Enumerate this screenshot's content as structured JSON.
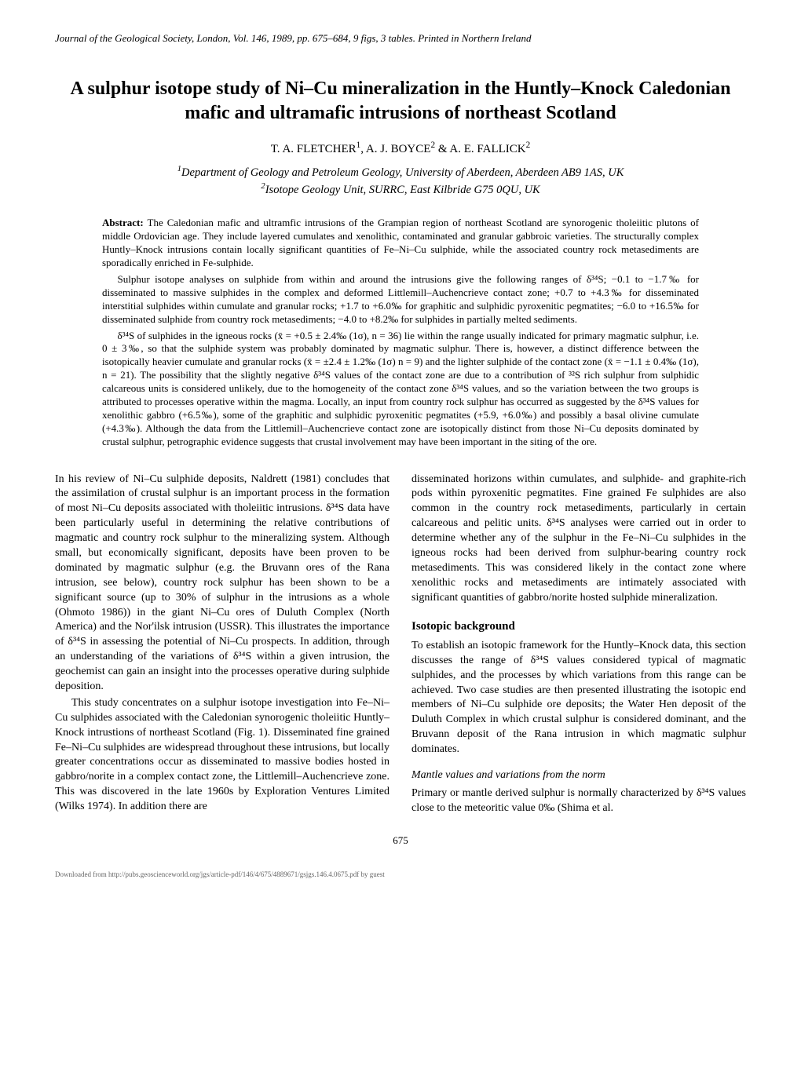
{
  "journal_header": "Journal of the Geological Society, London, Vol. 146, 1989, pp. 675–684, 9 figs, 3 tables. Printed in Northern Ireland",
  "title": "A sulphur isotope study of Ni–Cu mineralization in the Huntly–Knock Caledonian mafic and ultramafic intrusions of northeast Scotland",
  "authors_html": "T. A. FLETCHER<sup>1</sup>, A. J. BOYCE<sup>2</sup> & A. E. FALLICK<sup>2</sup>",
  "affiliations_html": "<sup>1</sup>Department of Geology and Petroleum Geology, University of Aberdeen, Aberdeen AB9 1AS, UK<br><sup>2</sup>Isotope Geology Unit, SURRC, East Kilbride G75 0QU, UK",
  "abstract": {
    "label": "Abstract:",
    "paragraphs": [
      "The Caledonian mafic and ultramfic intrusions of the Grampian region of northeast Scotland are synorogenic tholeiitic plutons of middle Ordovician age. They include layered cumulates and xenolithic, contaminated and granular gabbroic varieties. The structurally complex Huntly–Knock intrusions contain locally significant quantities of Fe–Ni–Cu sulphide, while the associated country rock metasediments are sporadically enriched in Fe-sulphide.",
      "Sulphur isotope analyses on sulphide from within and around the intrusions give the following ranges of δ³⁴S; −0.1 to −1.7‰ for disseminated to massive sulphides in the complex and deformed Littlemill–Auchencrieve contact zone; +0.7 to +4.3‰ for disseminated interstitial sulphides within cumulate and granular rocks; +1.7 to +6.0‰ for graphitic and sulphidic pyroxenitic pegmatites; −6.0 to +16.5‰ for disseminated sulphide from country rock metasediments; −4.0 to +8.2‰ for sulphides in partially melted sediments.",
      "δ³⁴S of sulphides in the igneous rocks (x̄ = +0.5 ± 2.4‰ (1σ), n = 36) lie within the range usually indicated for primary magmatic sulphur, i.e. 0 ± 3‰, so that the sulphide system was probably dominated by magmatic sulphur. There is, however, a distinct difference between the isotopically heavier cumulate and granular rocks (x̄ = ±2.4 ± 1.2‰ (1σ) n = 9) and the lighter sulphide of the contact zone (x̄ = −1.1 ± 0.4‰ (1σ), n = 21). The possibility that the slightly negative δ³⁴S values of the contact zone are due to a contribution of ³²S rich sulphur from sulphidic calcareous units is considered unlikely, due to the homogeneity of the contact zone δ³⁴S values, and so the variation between the two groups is attributed to processes operative within the magma. Locally, an input from country rock sulphur has occurred as suggested by the δ³⁴S values for xenolithic gabbro (+6.5‰), some of the graphitic and sulphidic pyroxenitic pegmatites (+5.9, +6.0‰) and possibly a basal olivine cumulate (+4.3‰). Although the data from the Littlemill–Auchencrieve contact zone are isotopically distinct from those Ni–Cu deposits dominated by crustal sulphur, petrographic evidence suggests that crustal involvement may have been important in the siting of the ore."
    ]
  },
  "body": {
    "left": [
      {
        "type": "p",
        "class": "no-indent",
        "text": "In his review of Ni–Cu sulphide deposits, Naldrett (1981) concludes that the assimilation of crustal sulphur is an important process in the formation of most Ni–Cu deposits associated with tholeiitic intrusions. δ³⁴S data have been particularly useful in determining the relative contributions of magmatic and country rock sulphur to the mineralizing system. Although small, but economically significant, deposits have been proven to be dominated by magmatic sulphur (e.g. the Bruvann ores of the Rana intrusion, see below), country rock sulphur has been shown to be a significant source (up to 30% of sulphur in the intrusions as a whole (Ohmoto 1986)) in the giant Ni–Cu ores of Duluth Complex (North America) and the Nor'ilsk intrusion (USSR). This illustrates the importance of δ³⁴S in assessing the potential of Ni–Cu prospects. In addition, through an understanding of the variations of δ³⁴S within a given intrusion, the geochemist can gain an insight into the processes operative during sulphide deposition."
      },
      {
        "type": "p",
        "text": "This study concentrates on a sulphur isotope investigation into Fe–Ni–Cu sulphides associated with the Caledonian synorogenic tholeiitic Huntly–Knock intrustions of northeast Scotland (Fig. 1). Disseminated fine grained Fe–Ni–Cu sulphides are widespread throughout these intrusions, but locally greater concentrations occur as disseminated to massive bodies hosted in gabbro/norite in a complex contact zone, the Littlemill–Auchencrieve zone. This was discovered in the late 1960s by Exploration Ventures Limited (Wilks 1974). In addition there are"
      }
    ],
    "right": [
      {
        "type": "p",
        "class": "no-indent",
        "text": "disseminated horizons within cumulates, and sulphide- and graphite-rich pods within pyroxenitic pegmatites. Fine grained Fe sulphides are also common in the country rock metasediments, particularly in certain calcareous and pelitic units. δ³⁴S analyses were carried out in order to determine whether any of the sulphur in the Fe–Ni–Cu sulphides in the igneous rocks had been derived from sulphur-bearing country rock metasediments. This was considered likely in the contact zone where xenolithic rocks and metasediments are intimately associated with significant quantities of gabbro/norite hosted sulphide mineralization."
      },
      {
        "type": "h2",
        "text": "Isotopic background"
      },
      {
        "type": "p",
        "class": "no-indent",
        "text": "To establish an isotopic framework for the Huntly–Knock data, this section discusses the range of δ³⁴S values considered typical of magmatic sulphides, and the processes by which variations from this range can be achieved. Two case studies are then presented illustrating the isotopic end members of Ni–Cu sulphide ore deposits; the Water Hen deposit of the Duluth Complex in which crustal sulphur is considered dominant, and the Bruvann deposit of the Rana intrusion in which magmatic sulphur dominates."
      },
      {
        "type": "h3",
        "text": "Mantle values and variations from the norm"
      },
      {
        "type": "p",
        "class": "no-indent",
        "text": "Primary or mantle derived sulphur is normally characterized by δ³⁴S values close to the meteoritic value 0‰ (Shima et al."
      }
    ]
  },
  "page_number": "675",
  "download_note": "Downloaded from http://pubs.geoscienceworld.org/jgs/article-pdf/146/4/675/4889671/gsjgs.146.4.0675.pdf\nby guest"
}
